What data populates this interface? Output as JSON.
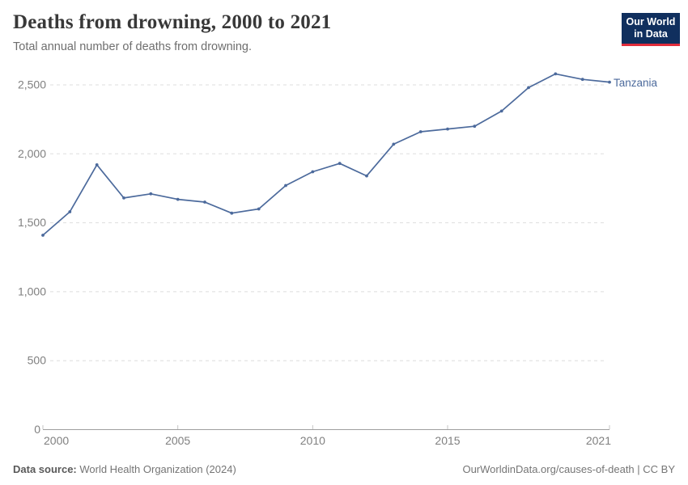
{
  "header": {
    "title": "Deaths from drowning, 2000 to 2021",
    "subtitle": "Total annual number of deaths from drowning.",
    "logo": {
      "line1": "Our World",
      "line2": "in Data",
      "bg_color": "#102f5e",
      "accent_color": "#e12c3b",
      "text_color": "#ffffff"
    }
  },
  "chart_data": {
    "type": "line",
    "title": "Deaths from drowning, 2000 to 2021",
    "xlabel": "",
    "ylabel": "",
    "x": [
      2000,
      2001,
      2002,
      2003,
      2004,
      2005,
      2006,
      2007,
      2008,
      2009,
      2010,
      2011,
      2012,
      2013,
      2014,
      2015,
      2016,
      2017,
      2018,
      2019,
      2020,
      2021
    ],
    "series": [
      {
        "name": "Tanzania",
        "color": "#4c6a9c",
        "values": [
          1410,
          1580,
          1920,
          1680,
          1710,
          1670,
          1650,
          1570,
          1600,
          1770,
          1870,
          1930,
          1840,
          2070,
          2160,
          2180,
          2200,
          2310,
          2480,
          2580,
          2540,
          2520
        ]
      }
    ],
    "ylim": [
      0,
      2500
    ],
    "yticks": [
      0,
      500,
      1000,
      1500,
      2000,
      2500
    ],
    "ytick_labels": [
      "0",
      "500",
      "1,000",
      "1,500",
      "2,000",
      "2,500"
    ],
    "xticks": [
      2000,
      2005,
      2010,
      2015,
      2021
    ],
    "xtick_labels": [
      "2000",
      "2005",
      "2010",
      "2015",
      "2021"
    ],
    "grid": "horizontal-dashed",
    "legend_position": "end-of-line-label",
    "grid_color": "#dddddd",
    "axis_color": "#9e9e9e"
  },
  "footer": {
    "datasource_label": "Data source:",
    "datasource_value": " World Health Organization (2024)",
    "credit": "OurWorldinData.org/causes-of-death | CC BY"
  }
}
